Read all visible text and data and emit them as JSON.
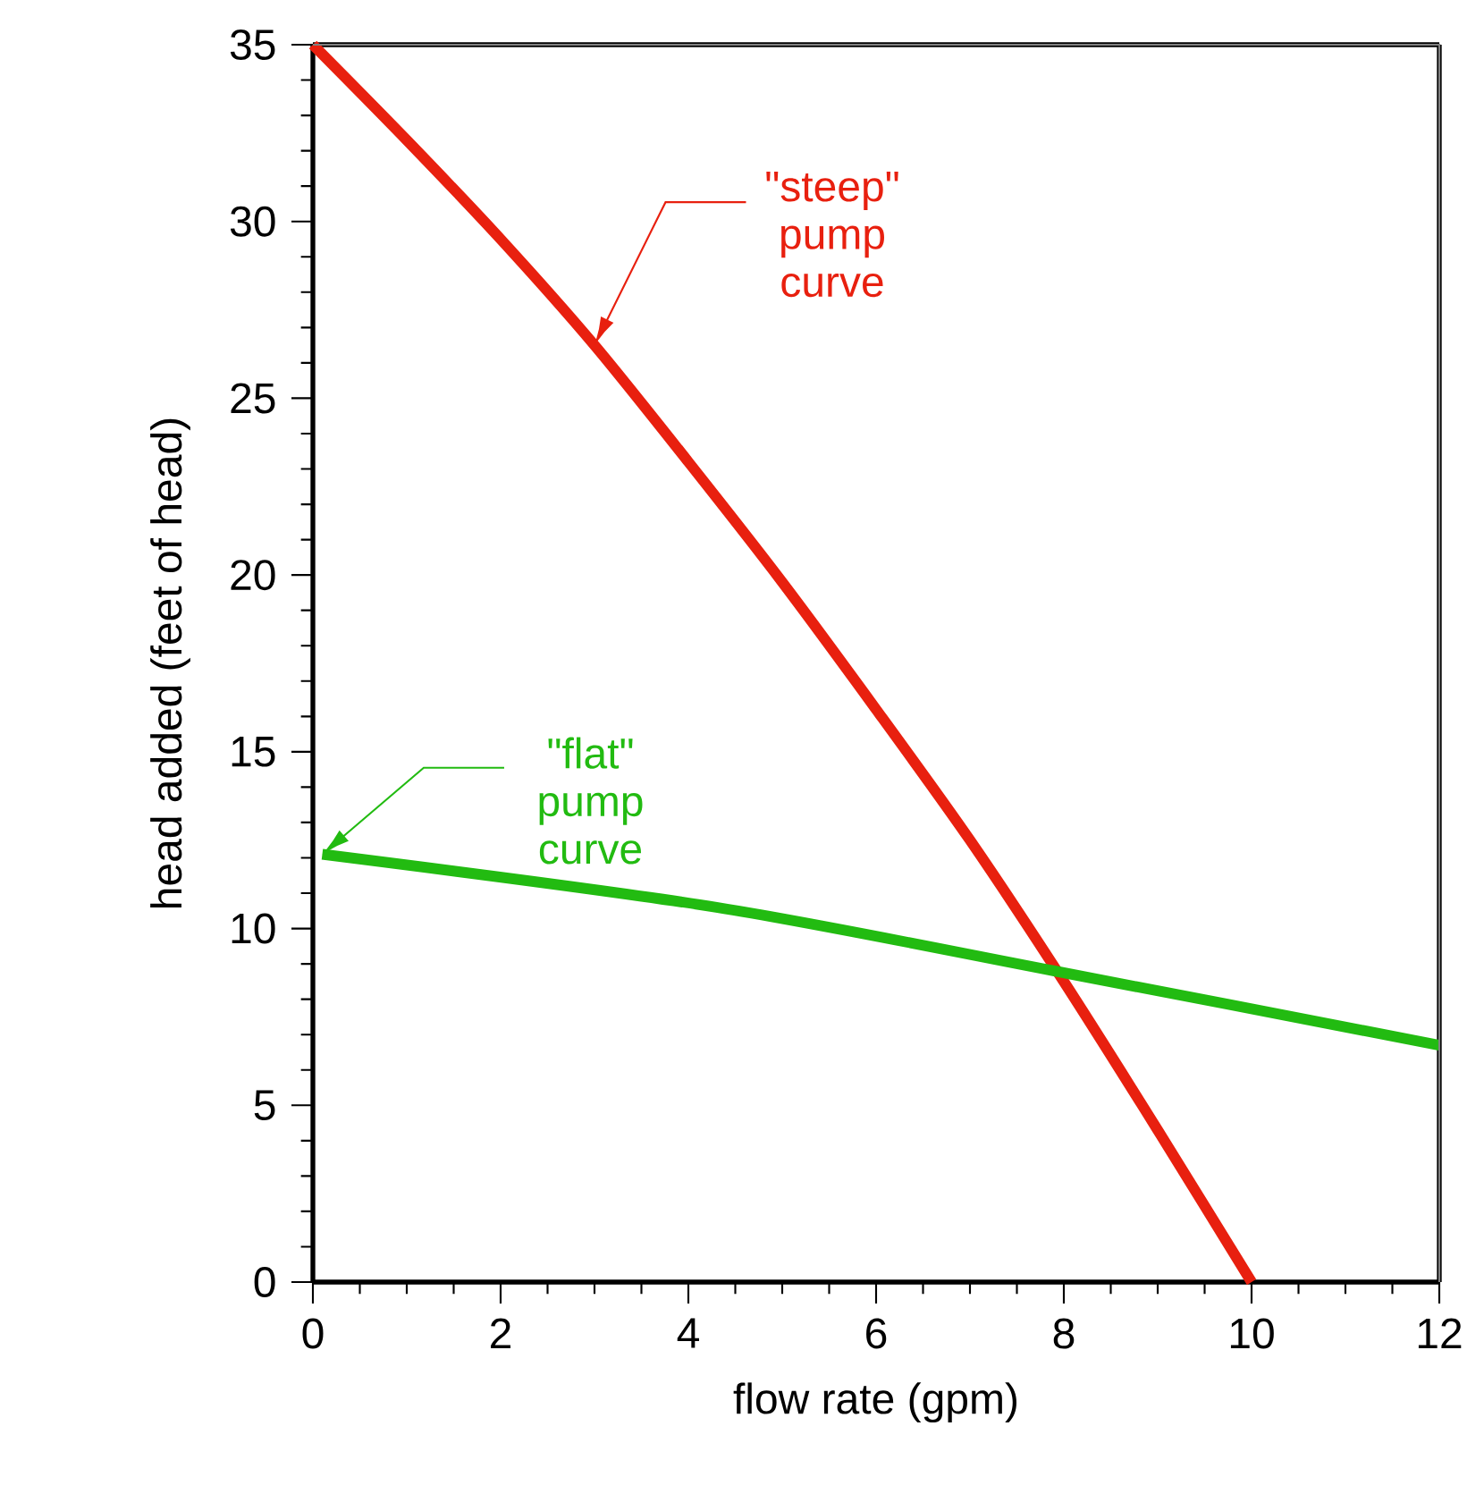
{
  "chart_data": {
    "type": "line",
    "xlabel": "flow rate (gpm)",
    "ylabel": "head added (feet of head)",
    "x": [
      0,
      1,
      2,
      3,
      4,
      5,
      6,
      7,
      8,
      9,
      10
    ],
    "series": [
      {
        "color": "#e8200f",
        "values": [
          35,
          32.3,
          29.5,
          26.5,
          23.2,
          19.8,
          16.2,
          12.5,
          8.5,
          4.3,
          0
        ]
      },
      {
        "color": "#22bb11",
        "x": [
          0.1,
          4.3,
          7.9,
          12
        ],
        "values": [
          12.1,
          10.6,
          8.8,
          6.7
        ]
      }
    ],
    "xlim": [
      0,
      12
    ],
    "ylim": [
      0,
      35
    ],
    "xticks": [
      0,
      2,
      4,
      6,
      8,
      10,
      12
    ],
    "yticks": [
      0,
      5,
      10,
      15,
      20,
      25,
      30,
      35
    ],
    "grid": false,
    "legend": false,
    "marker": "none",
    "line_style": "solid",
    "annotations": [
      "\"steep\" pump curve",
      "\"flat\" pump curve"
    ]
  }
}
